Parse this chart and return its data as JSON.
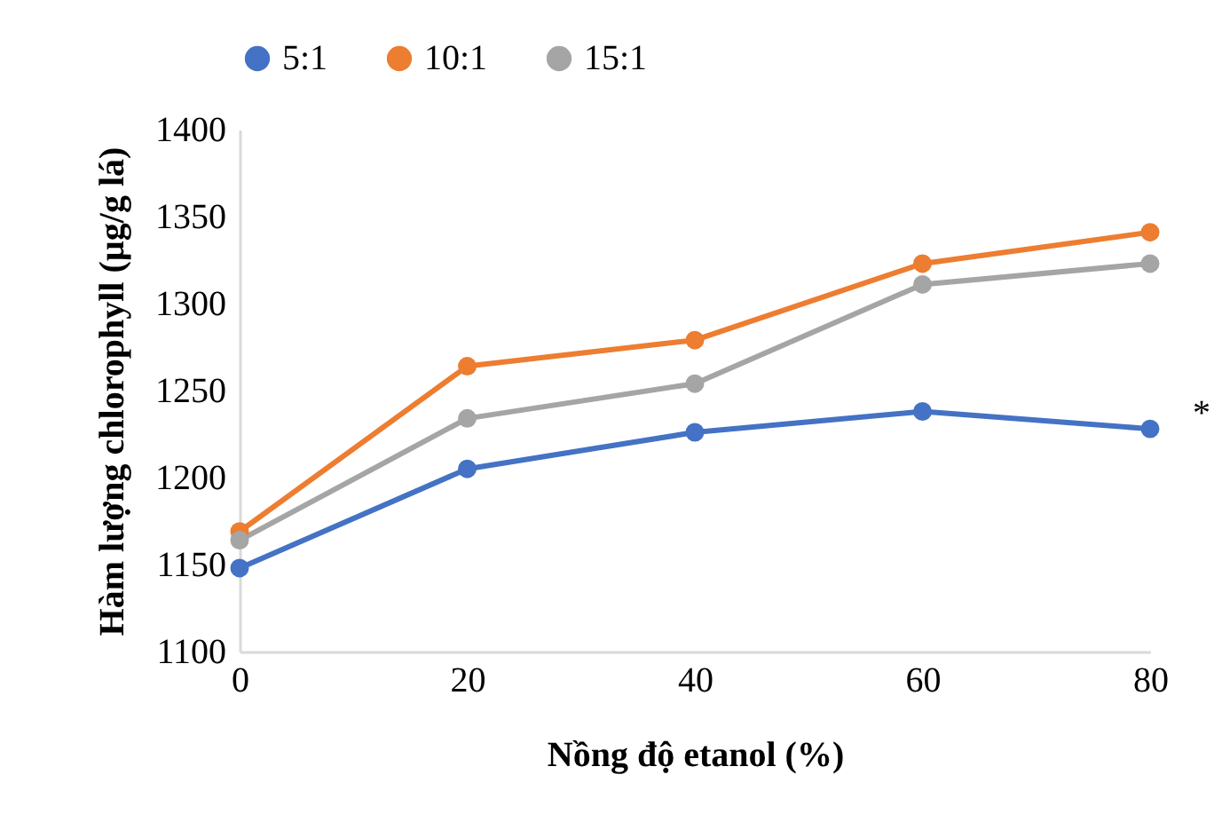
{
  "chart_data": {
    "type": "line",
    "xlabel": "Nồng độ etanol (%)",
    "ylabel": "Hàm lượng chlorophyll (µg/g lá)",
    "x": [
      0,
      20,
      40,
      60,
      80
    ],
    "series": [
      {
        "name": "5:1",
        "color": "#4472c4",
        "values": [
          1148,
          1205,
          1226,
          1238,
          1228
        ]
      },
      {
        "name": "10:1",
        "color": "#ed7d31",
        "values": [
          1169,
          1264,
          1279,
          1323,
          1341
        ]
      },
      {
        "name": "15:1",
        "color": "#a5a5a5",
        "values": [
          1164,
          1234,
          1254,
          1311,
          1323
        ]
      }
    ],
    "xlim": [
      0,
      80
    ],
    "xticks": [
      0,
      20,
      40,
      60,
      80
    ],
    "ylim": [
      1100,
      1400
    ],
    "yticks": [
      1100,
      1150,
      1200,
      1250,
      1300,
      1350,
      1400
    ],
    "grid": false,
    "legend": "top",
    "marker": "circle",
    "line_style": "solid",
    "annotations": [
      "*"
    ]
  }
}
